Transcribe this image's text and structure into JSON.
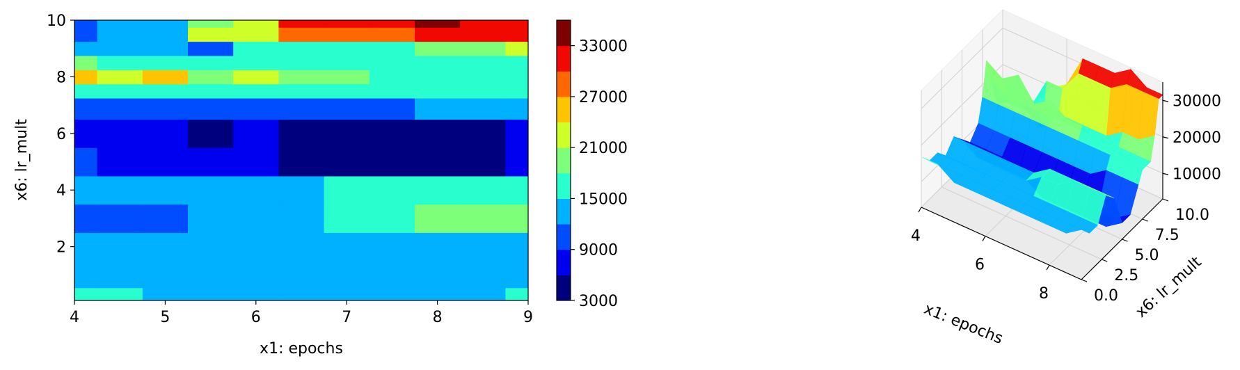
{
  "chart_data": [
    {
      "type": "heatmap",
      "xlabel": "x1: epochs",
      "ylabel": "x6: lr_mult",
      "xlim": [
        4,
        9
      ],
      "ylim": [
        0.1,
        10
      ],
      "x_ticks": [
        "4",
        "5",
        "6",
        "7",
        "8",
        "9"
      ],
      "y_ticks": [
        "2",
        "4",
        "6",
        "8",
        "10"
      ],
      "colorbar": {
        "levels": [
          3000,
          6000,
          9000,
          12000,
          15000,
          18000,
          21000,
          24000,
          27000,
          30000,
          33000,
          36000
        ],
        "tick_labels": [
          "3000",
          "9000",
          "15000",
          "21000",
          "27000",
          "33000"
        ],
        "colors": [
          "#00007f",
          "#0000f1",
          "#004dff",
          "#00b1ff",
          "#29ffce",
          "#7dff7a",
          "#ceff29",
          "#ffc400",
          "#ff6800",
          "#f10800",
          "#7f0000"
        ]
      },
      "x": [
        4,
        4.5,
        5,
        5.5,
        6,
        6.5,
        7,
        7.5,
        8,
        8.5,
        9
      ],
      "y": [
        0.1,
        1,
        2,
        3,
        4,
        5,
        6,
        7,
        7.5,
        8,
        8.5,
        9,
        9.5,
        10
      ],
      "z": [
        [
          16500,
          16500,
          13500,
          13500,
          13500,
          13500,
          13500,
          13500,
          13500,
          13500,
          16500
        ],
        [
          13500,
          13500,
          13500,
          13500,
          13500,
          13500,
          13500,
          13500,
          13500,
          13500,
          13500
        ],
        [
          13500,
          13500,
          13500,
          13500,
          13500,
          13500,
          13500,
          13500,
          13500,
          13500,
          13500
        ],
        [
          10500,
          10500,
          10500,
          13500,
          13500,
          13500,
          16500,
          16500,
          19500,
          19500,
          19500
        ],
        [
          13500,
          13500,
          13500,
          13500,
          13500,
          13500,
          16500,
          16500,
          16500,
          16500,
          16500
        ],
        [
          10500,
          7500,
          7500,
          7500,
          7500,
          4500,
          4500,
          4500,
          4500,
          4500,
          7500
        ],
        [
          7500,
          7500,
          7500,
          4500,
          7500,
          4500,
          4500,
          4500,
          4500,
          4500,
          7500
        ],
        [
          10500,
          10500,
          10500,
          10500,
          10500,
          10500,
          10500,
          10500,
          13500,
          13500,
          13500
        ],
        [
          16500,
          16500,
          16500,
          16500,
          16500,
          16500,
          16500,
          16500,
          16500,
          16500,
          16500
        ],
        [
          25500,
          22500,
          25500,
          19500,
          22500,
          19500,
          19500,
          16500,
          16500,
          16500,
          16500
        ],
        [
          19500,
          16500,
          16500,
          16500,
          16500,
          16500,
          16500,
          16500,
          16500,
          16500,
          16500
        ],
        [
          13500,
          13500,
          13500,
          10500,
          16500,
          16500,
          16500,
          16500,
          19500,
          19500,
          22500
        ],
        [
          10500,
          13500,
          13500,
          22500,
          22500,
          28500,
          28500,
          28500,
          31500,
          31500,
          31500
        ],
        [
          10500,
          13500,
          13500,
          19500,
          22500,
          31500,
          31500,
          31500,
          34500,
          31500,
          31500
        ]
      ]
    },
    {
      "type": "surface",
      "xlabel": "x1: epochs",
      "ylabel": "x6: lr_mult",
      "x_ticks": [
        "4",
        "6",
        "8"
      ],
      "y_ticks": [
        "0.0",
        "2.5",
        "5.0",
        "7.5",
        "10.0"
      ],
      "z_ticks": [
        "10000",
        "20000",
        "30000"
      ],
      "xlim": [
        4,
        9
      ],
      "ylim": [
        0,
        10
      ],
      "zlim": [
        3000,
        35000
      ],
      "grid": true
    }
  ]
}
